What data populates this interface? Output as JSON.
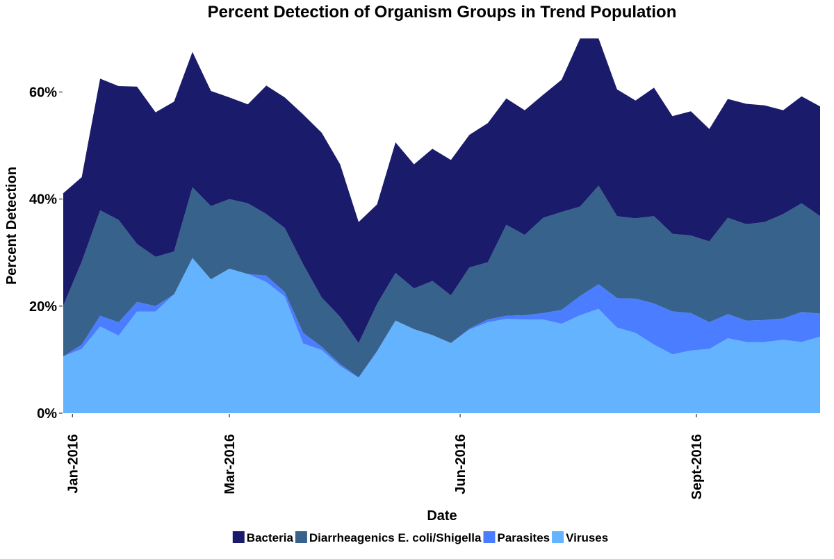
{
  "chart_data": {
    "type": "area",
    "stacked": true,
    "title": "Percent Detection of Organism Groups in Trend Population",
    "xlabel": "Date",
    "ylabel": "Percent Detection",
    "ylim": [
      0,
      0.72
    ],
    "yticks": [
      0,
      0.2,
      0.4,
      0.6
    ],
    "ytick_labels": [
      "0%",
      "20%",
      "40%",
      "60%"
    ],
    "xticks": [
      {
        "label": "Jan-2016",
        "week": 0.5
      },
      {
        "label": "Mar-2016",
        "week": 9.0
      },
      {
        "label": "Jun-2016",
        "week": 21.5
      },
      {
        "label": "Sept-2016",
        "week": 34.3
      }
    ],
    "x": [
      0,
      1,
      2,
      3,
      4,
      5,
      6,
      7,
      8,
      9,
      10,
      11,
      12,
      13,
      14,
      15,
      16,
      17,
      18,
      19,
      20,
      21,
      22,
      23,
      24,
      25,
      26,
      27,
      28,
      29,
      30,
      31,
      32,
      33,
      34,
      35,
      36,
      37,
      38,
      39,
      40,
      41
    ],
    "grid": false,
    "legend_position": "bottom",
    "series": [
      {
        "name": "Viruses",
        "color": "#63B3FF",
        "values": [
          0.106,
          0.12,
          0.162,
          0.145,
          0.19,
          0.19,
          0.222,
          0.29,
          0.25,
          0.27,
          0.26,
          0.245,
          0.218,
          0.13,
          0.118,
          0.088,
          0.066,
          0.115,
          0.173,
          0.157,
          0.146,
          0.131,
          0.156,
          0.17,
          0.176,
          0.175,
          0.175,
          0.167,
          0.183,
          0.195,
          0.16,
          0.15,
          0.128,
          0.11,
          0.117,
          0.12,
          0.14,
          0.133,
          0.133,
          0.137,
          0.133,
          0.143
        ]
      },
      {
        "name": "Parasites",
        "color": "#4A7DFF",
        "values": [
          0,
          0.008,
          0.02,
          0.025,
          0.018,
          0.01,
          0,
          0,
          0,
          0,
          0,
          0.012,
          0.008,
          0.02,
          0.006,
          0.004,
          0.001,
          0.001,
          0,
          0,
          0,
          0,
          0.002,
          0.005,
          0.006,
          0.008,
          0.012,
          0.026,
          0.036,
          0.046,
          0.055,
          0.064,
          0.077,
          0.08,
          0.07,
          0.05,
          0.045,
          0.04,
          0.041,
          0.04,
          0.056,
          0.043
        ]
      },
      {
        "name": "Diarrheagenics E. coli/Shigella",
        "color": "#37628C",
        "values": [
          0.095,
          0.155,
          0.197,
          0.191,
          0.108,
          0.092,
          0.08,
          0.132,
          0.137,
          0.13,
          0.132,
          0.115,
          0.12,
          0.128,
          0.092,
          0.088,
          0.064,
          0.088,
          0.089,
          0.076,
          0.101,
          0.089,
          0.114,
          0.107,
          0.17,
          0.15,
          0.178,
          0.183,
          0.167,
          0.184,
          0.153,
          0.15,
          0.163,
          0.145,
          0.145,
          0.151,
          0.18,
          0.18,
          0.183,
          0.195,
          0.203,
          0.182
        ]
      },
      {
        "name": "Bacteria",
        "color": "#1B1B6C",
        "values": [
          0.21,
          0.158,
          0.246,
          0.25,
          0.294,
          0.27,
          0.28,
          0.253,
          0.215,
          0.19,
          0.185,
          0.24,
          0.244,
          0.28,
          0.308,
          0.285,
          0.226,
          0.186,
          0.244,
          0.232,
          0.247,
          0.253,
          0.248,
          0.26,
          0.236,
          0.233,
          0.23,
          0.247,
          0.314,
          0.275,
          0.237,
          0.22,
          0.24,
          0.22,
          0.232,
          0.21,
          0.222,
          0.225,
          0.218,
          0.194,
          0.2,
          0.205
        ]
      }
    ],
    "legend_order": [
      "Bacteria",
      "Diarrheagenics E. coli/Shigella",
      "Parasites",
      "Viruses"
    ]
  }
}
